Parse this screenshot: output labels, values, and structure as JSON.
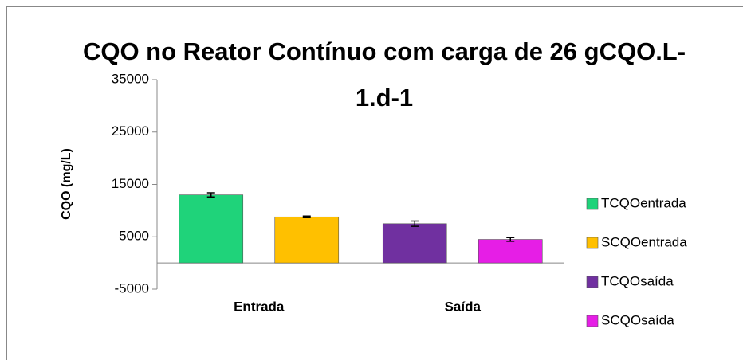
{
  "chart_data": {
    "type": "bar",
    "title": "CQO no Reator Contínuo com carga de 26 gCQO.L-1.d-1",
    "y_label": "CQO (mg/L)",
    "categories": [
      "Entrada",
      "Saída"
    ],
    "series": [
      {
        "name": "TCQOentrada",
        "color": "#1fd37a",
        "values": [
          13000,
          null
        ],
        "errors": [
          400,
          null
        ]
      },
      {
        "name": "SCQOentrada",
        "color": "#ffc000",
        "values": [
          8800,
          null
        ],
        "errors": [
          150,
          null
        ]
      },
      {
        "name": "TCQOsaída",
        "color": "#7030a0",
        "values": [
          null,
          7500
        ],
        "errors": [
          null,
          500
        ]
      },
      {
        "name": "SCQOsaída",
        "color": "#e61ee6",
        "values": [
          null,
          4500
        ],
        "errors": [
          null,
          350
        ]
      }
    ],
    "ylim": [
      -5000,
      35000
    ],
    "yticks": [
      -5000,
      5000,
      15000,
      25000,
      35000
    ],
    "legend": "right"
  }
}
